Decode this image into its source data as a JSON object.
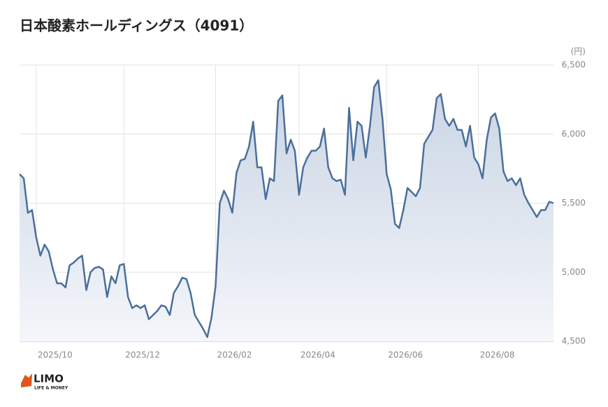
{
  "chart_data": {
    "type": "line",
    "title": "日本酸素ホールディングス（4091）",
    "y_label": "(円)",
    "brand": "LIMO",
    "brand_tagline": "LIFE & MONEY",
    "categories": [
      null,
      null,
      null,
      null,
      "2025/10",
      null,
      null,
      null,
      null,
      null,
      null,
      null,
      null,
      null,
      null,
      null,
      null,
      null,
      null,
      null,
      null,
      null,
      null,
      null,
      null,
      "2025/12",
      null,
      null,
      null,
      null,
      null,
      null,
      null,
      null,
      null,
      null,
      null,
      null,
      null,
      null,
      null,
      null,
      null,
      null,
      null,
      null,
      null,
      "2026/02",
      null,
      null,
      null,
      null,
      null,
      null,
      null,
      null,
      null,
      null,
      null,
      null,
      null,
      null,
      null,
      null,
      null,
      null,
      null,
      "2026/04",
      null,
      null,
      null,
      null,
      null,
      null,
      null,
      null,
      null,
      null,
      null,
      null,
      null,
      null,
      null,
      null,
      null,
      null,
      null,
      null,
      "2026/06",
      null,
      null,
      null,
      null,
      null,
      null,
      null,
      null,
      null,
      null,
      null,
      null,
      null,
      null,
      null,
      null,
      null,
      null,
      null,
      null,
      null,
      "2026/08",
      null,
      null,
      null,
      null,
      null,
      null,
      null,
      null,
      null,
      null,
      null,
      null,
      null,
      null,
      null,
      null,
      null,
      null
    ],
    "series": [
      {
        "color": "#4b6f9b",
        "values": [
          5710,
          5680,
          5430,
          5450,
          5250,
          5120,
          5200,
          5150,
          5020,
          4920,
          4920,
          4890,
          5050,
          5070,
          5100,
          5120,
          4870,
          5000,
          5030,
          5040,
          5020,
          4820,
          4970,
          4920,
          5050,
          5060,
          4820,
          4740,
          4760,
          4740,
          4760,
          4660,
          4690,
          4720,
          4760,
          4750,
          4690,
          4850,
          4900,
          4960,
          4950,
          4850,
          4690,
          4640,
          4590,
          4530,
          4670,
          4900,
          5500,
          5590,
          5530,
          5430,
          5720,
          5810,
          5820,
          5910,
          6090,
          5760,
          5760,
          5530,
          5680,
          5660,
          6240,
          6280,
          5860,
          5960,
          5880,
          5560,
          5760,
          5830,
          5880,
          5880,
          5910,
          6040,
          5760,
          5680,
          5660,
          5670,
          5560,
          6190,
          5810,
          6090,
          6060,
          5830,
          6060,
          6340,
          6390,
          6110,
          5710,
          5600,
          5350,
          5320,
          5450,
          5610,
          5580,
          5550,
          5610,
          5930,
          5980,
          6030,
          6260,
          6290,
          6110,
          6060,
          6110,
          6030,
          6030,
          5910,
          6060,
          5830,
          5780,
          5680,
          5960,
          6120,
          6150,
          6040,
          5730,
          5660,
          5680,
          5630,
          5680,
          5560,
          5500,
          5450,
          5400,
          5450,
          5450,
          5510,
          5500
        ]
      }
    ],
    "ylim": [
      4500,
      6500
    ],
    "yticks": [
      {
        "value": 4500,
        "label": "4,500"
      },
      {
        "value": 5000,
        "label": "5,000"
      },
      {
        "value": 5500,
        "label": "5,500"
      },
      {
        "value": 6000,
        "label": "6,000"
      },
      {
        "value": 6500,
        "label": "6,500"
      }
    ],
    "grid": true
  }
}
